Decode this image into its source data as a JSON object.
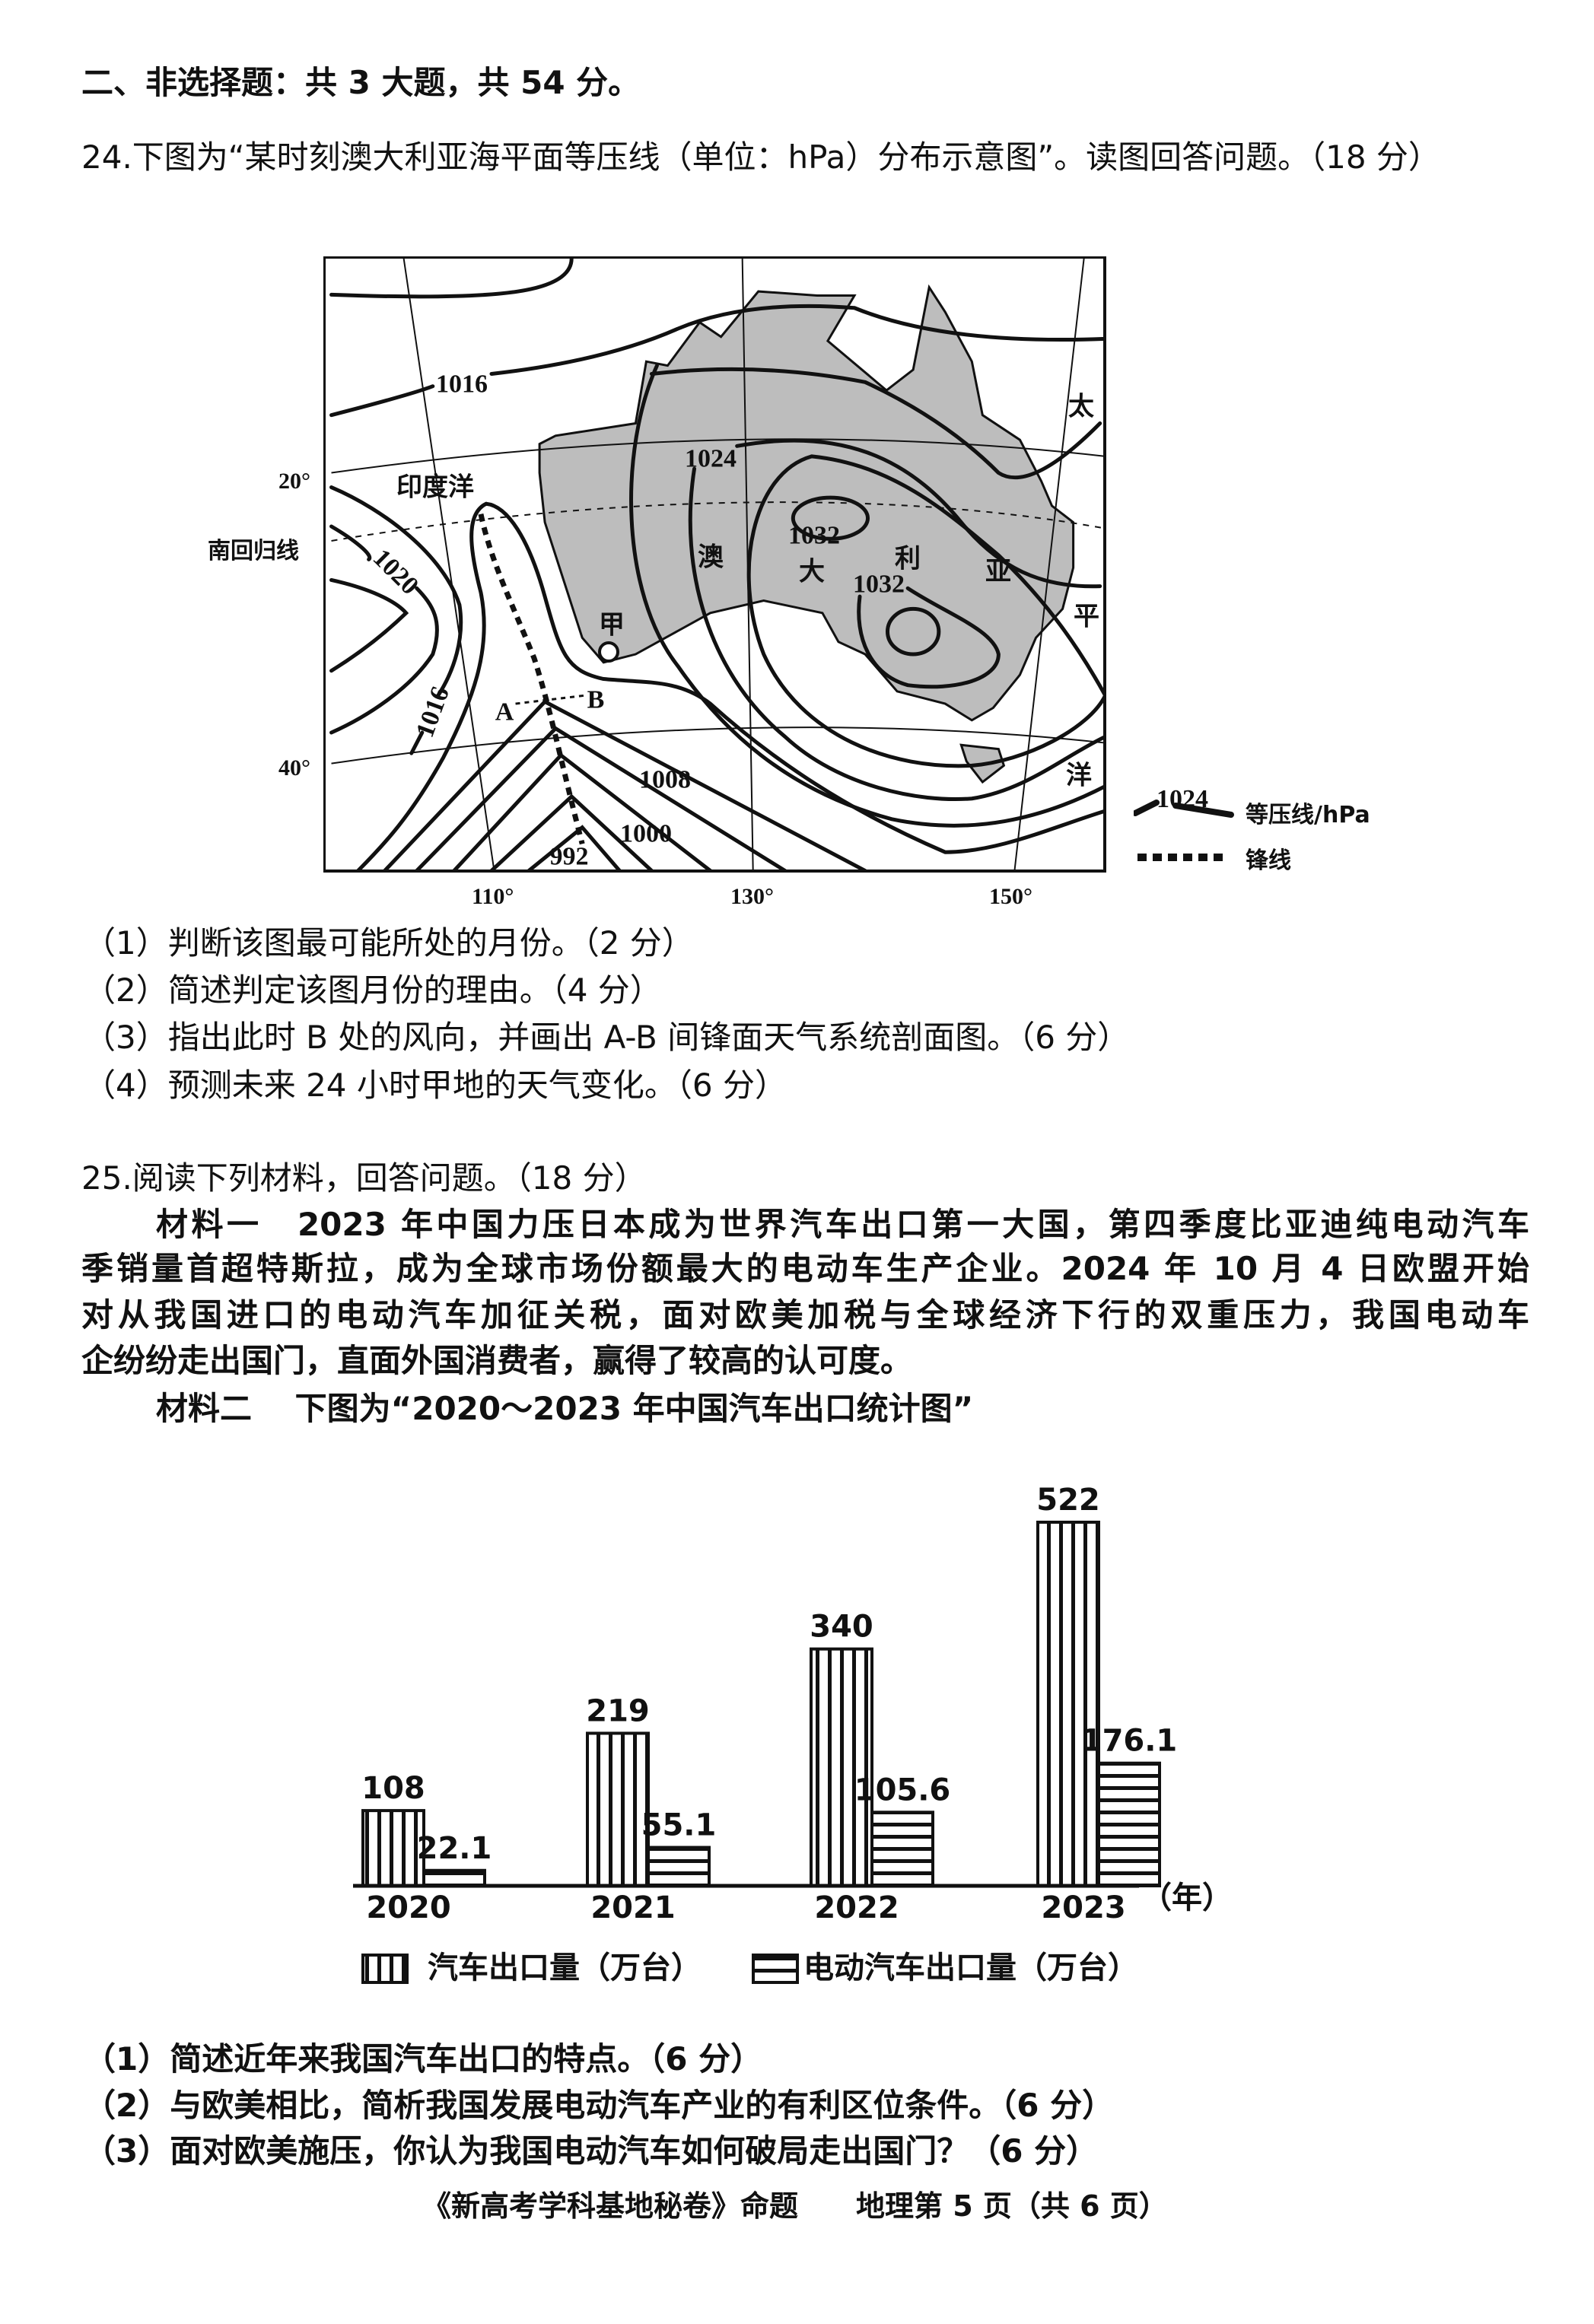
{
  "section_heading": "二、非选择题：共 3 大题，共 54 分。",
  "q24": {
    "stem": "24.下图为“某时刻澳大利亚海平面等压线（单位：hPa）分布示意图”。读图回答问题。（18 分）",
    "map": {
      "lat_labels": [
        "20°",
        "40°"
      ],
      "tropic_label": "南回归线",
      "lon_labels": [
        "110°",
        "130°",
        "150°"
      ],
      "isobar_labels": [
        "1016",
        "1020",
        "1016",
        "1024",
        "1032",
        "1032",
        "1008",
        "1000",
        "992"
      ],
      "place_labels": {
        "ocean_west": "印度洋",
        "aus": [
          "澳",
          "大",
          "利",
          "亚"
        ],
        "pacific": [
          "太",
          "平",
          "洋"
        ],
        "jia": "甲",
        "a": "A",
        "b": "B"
      },
      "legend": {
        "isobar_sample": "1024",
        "isobar_label": "等压线/hPa",
        "front_label": "锋线"
      },
      "land_color": "#bdbdbd"
    },
    "questions": [
      "（1）判断该图最可能所处的月份。（2 分）",
      "（2）简述判定该图月份的理由。（4 分）",
      "（3）指出此时 B 处的风向，并画出 A-B 间锋面天气系统剖面图。（6 分）",
      "（4）预测未来 24 小时甲地的天气变化。（6 分）"
    ]
  },
  "q25": {
    "stem": "25.阅读下列材料，回答问题。（18 分）",
    "material1_lines": [
      "材料一　2023 年中国力压日本成为世界汽车出口第一大国，第四季度比亚迪纯电动汽车",
      "季销量首超特斯拉，成为全球市场份额最大的电动车生产企业。2024 年 10 月 4 日欧盟开始",
      "对从我国进口的电动汽车加征关税，面对欧美加税与全球经济下行的双重压力，我国电动车",
      "企纷纷走出国门，直面外国消费者，赢得了较高的认可度。"
    ],
    "material2": "材料二　 下图为“2020～2023 年中国汽车出口统计图”",
    "questions": [
      "（1）简述近年来我国汽车出口的特点。（6 分）",
      "（2）与欧美相比，简析我国发展电动汽车产业的有利区位条件。（6 分）",
      "（3）面对欧美施压，你认为我国电动汽车如何破局走出国门？（6 分）"
    ]
  },
  "chart_data": {
    "type": "bar",
    "categories": [
      "2020",
      "2021",
      "2022",
      "2023"
    ],
    "x_unit": "（年）",
    "series": [
      {
        "name": "汽车出口量（万台）",
        "values": [
          108,
          219,
          340,
          522
        ],
        "pattern": "vertical-stripes"
      },
      {
        "name": "电动汽车出口量（万台）",
        "values": [
          22.1,
          55.1,
          105.6,
          176.1
        ],
        "pattern": "horizontal-stripes"
      }
    ],
    "value_labels": [
      [
        "108",
        "219",
        "340",
        "522"
      ],
      [
        "22.1",
        "55.1",
        "105.6",
        "176.1"
      ]
    ],
    "ylim": [
      0,
      522
    ],
    "grid": false,
    "legend": "bottom"
  },
  "footer": "《新高考学科基地秘卷》命题　　地理第 5 页（共 6 页）"
}
